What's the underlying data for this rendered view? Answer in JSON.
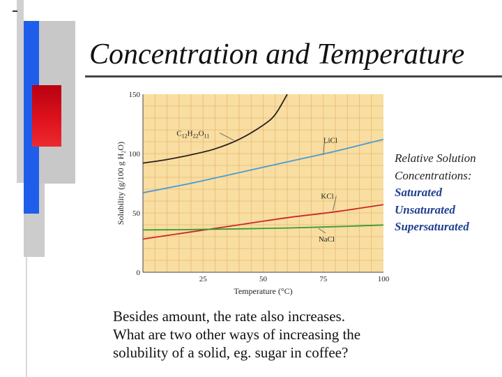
{
  "slide": {
    "title": "Concentration and Temperature",
    "accent_colors": {
      "red": "#e0141e",
      "blue": "#1e5eea",
      "gray": "#c8c8c8"
    }
  },
  "side_notes": {
    "intro_line1": "Relative Solution",
    "intro_line2": "Concentrations:",
    "items": [
      "Saturated",
      "Unsaturated",
      "Supersaturated"
    ],
    "item_color": "#1f3f8f"
  },
  "question": {
    "line1": "Besides amount, the rate also increases.",
    "line2": "What are two other ways of increasing the",
    "line3": "solubility of a solid, eg. sugar in coffee?"
  },
  "chart_data": {
    "type": "line",
    "xlabel": "Temperature (°C)",
    "ylabel": "Solubility (g/100 g H₂O)",
    "xlim": [
      0,
      100
    ],
    "ylim": [
      0,
      150
    ],
    "xticks": [
      "25",
      "50",
      "75",
      "100"
    ],
    "yticks": [
      "0",
      "50",
      "100",
      "150"
    ],
    "grid": true,
    "background": "#f8dea0",
    "series": [
      {
        "name": "C12H22O11",
        "label_parts": [
          [
            "C",
            ""
          ],
          [
            "12",
            "sub"
          ],
          [
            "H",
            ""
          ],
          [
            "22",
            "sub"
          ],
          [
            "O",
            ""
          ],
          [
            "11",
            "sub"
          ]
        ],
        "color": "#2a1e24",
        "x": [
          0,
          10,
          20,
          30,
          40,
          50,
          55,
          60
        ],
        "y": [
          92,
          95,
          99,
          104,
          112,
          124,
          133,
          150
        ]
      },
      {
        "name": "LiCl",
        "label_parts": [
          [
            "LiCl",
            ""
          ]
        ],
        "color": "#4a9ad8",
        "x": [
          0,
          20,
          40,
          60,
          80,
          100
        ],
        "y": [
          67,
          75,
          84,
          93,
          102,
          112
        ]
      },
      {
        "name": "KCl",
        "label_parts": [
          [
            "KCl",
            ""
          ]
        ],
        "color": "#c8282a",
        "x": [
          0,
          20,
          40,
          60,
          80,
          100
        ],
        "y": [
          28,
          34,
          40,
          46,
          51,
          57
        ]
      },
      {
        "name": "NaCl",
        "label_parts": [
          [
            "NaCl",
            ""
          ]
        ],
        "color": "#3a9a3a",
        "x": [
          0,
          20,
          40,
          60,
          80,
          100
        ],
        "y": [
          35.7,
          36.0,
          36.6,
          37.3,
          38.4,
          39.8
        ]
      }
    ]
  }
}
